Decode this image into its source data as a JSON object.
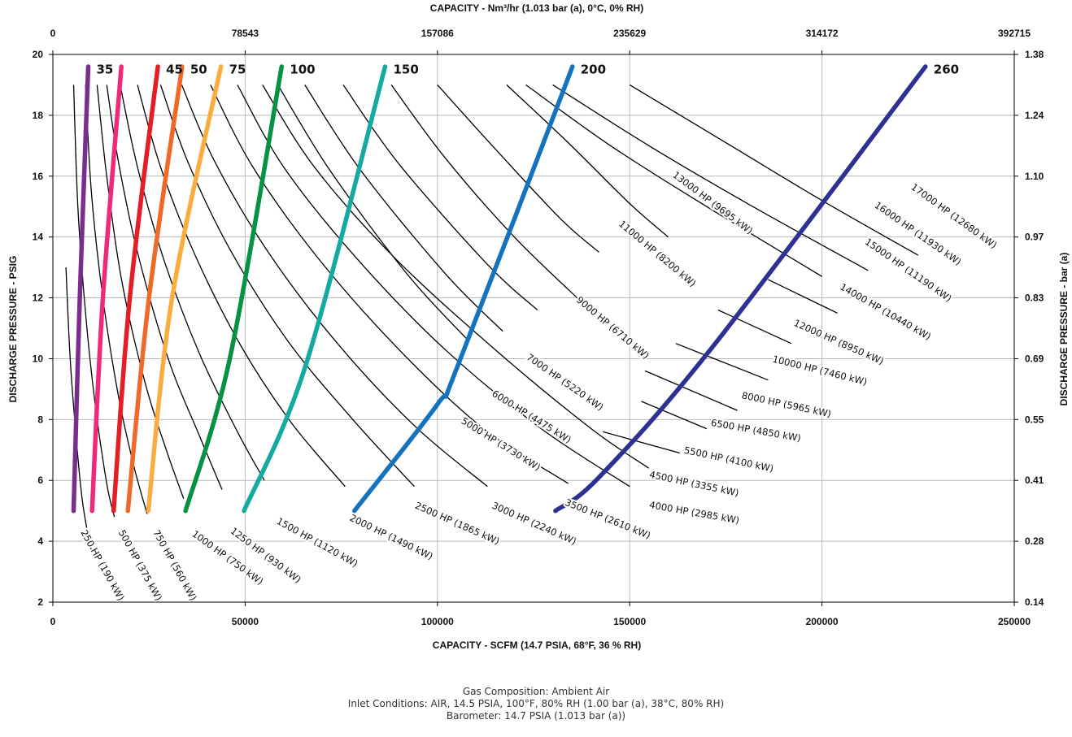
{
  "chart_data": {
    "type": "line",
    "top_axis_title": "CAPACITY - Nm³/hr (1.013 bar (a), 0°C, 0% RH)",
    "bottom_axis_title": "CAPACITY - SCFM (14.7 PSIA, 68°F, 36 % RH)",
    "left_axis_title": "DISCHARGE PRESSURE - PSIG",
    "right_axis_title": "DISCHARGE PRESSURE - bar (a)",
    "xlim": [
      0,
      250000
    ],
    "ylim": [
      2,
      20
    ],
    "grid": true,
    "x_ticks": [
      "0",
      "50000",
      "100000",
      "150000",
      "200000",
      "250000"
    ],
    "x_top_ticks": [
      "0",
      "78543",
      "157086",
      "235629",
      "314172",
      "392715"
    ],
    "y_ticks": [
      "2",
      "4",
      "6",
      "8",
      "10",
      "12",
      "14",
      "16",
      "18",
      "20"
    ],
    "y_right_ticks": [
      "0.14",
      "0.28",
      "0.41",
      "0.55",
      "0.69",
      "0.83",
      "0.97",
      "1.10",
      "1.24",
      "1.38"
    ],
    "size_series": [
      {
        "name": "35",
        "color": "#7b2d8e",
        "x": [
          5400,
          7000,
          9200
        ],
        "y": [
          5,
          12,
          19.6
        ]
      },
      {
        "name": "",
        "color": "#ee2b7b",
        "x": [
          10200,
          13000,
          17800
        ],
        "y": [
          5,
          12,
          19.6
        ]
      },
      {
        "name": "45",
        "color": "#e31e24",
        "x": [
          15800,
          20000,
          27300
        ],
        "y": [
          5,
          12,
          19.6
        ]
      },
      {
        "name": "50",
        "color": "#ef6a2a",
        "x": [
          19500,
          25000,
          33600
        ],
        "y": [
          5,
          12,
          19.6
        ]
      },
      {
        "name": "75",
        "color": "#f8ad3e",
        "x": [
          24800,
          31000,
          43700
        ],
        "y": [
          5,
          12,
          19.6
        ]
      },
      {
        "name": "100",
        "color": "#069143",
        "x": [
          34500,
          46000,
          59500
        ],
        "y": [
          5,
          10,
          19.6
        ]
      },
      {
        "name": "150",
        "color": "#14aaa0",
        "x": [
          49700,
          65800,
          86400
        ],
        "y": [
          5,
          9.8,
          19.6
        ]
      },
      {
        "name": "200",
        "color": "#1473be",
        "x": [
          78400,
          100000,
          105400,
          135100
        ],
        "y": [
          5,
          8.5,
          9.8,
          19.6
        ]
      },
      {
        "name": "260",
        "color": "#2e3192",
        "x": [
          130700,
          142000,
          171000,
          226900
        ],
        "y": [
          5,
          6.1,
          10.3,
          19.6
        ]
      }
    ],
    "size_label_y": 19.5,
    "hp_series": [
      {
        "name": "250 HP (190 kW)",
        "x": [
          3400,
          4500,
          6000,
          7500,
          9000,
          10200
        ],
        "y": [
          13,
          10,
          7.5,
          5.5,
          4.3,
          3.6
        ]
      },
      {
        "name": "500 HP (375 kW)",
        "x": [
          5400,
          6500,
          8500,
          11000,
          14000,
          16000
        ],
        "y": [
          19,
          15,
          11.5,
          8.5,
          5.9,
          4.8
        ]
      },
      {
        "name": "750 HP (560 kW)",
        "x": [
          8500,
          10000,
          13000,
          17000,
          21000,
          24500
        ],
        "y": [
          19,
          15.5,
          12,
          8.8,
          6.5,
          4.9
        ]
      },
      {
        "name": "1000 HP (750 kW)",
        "x": [
          11500,
          14000,
          18000,
          24000,
          29500,
          34000
        ],
        "y": [
          19,
          16,
          12.5,
          9.2,
          7,
          5.4
        ]
      },
      {
        "name": "1250 HP (930 kW)",
        "x": [
          14000,
          17000,
          22000,
          30000,
          38000,
          44000
        ],
        "y": [
          19,
          16.5,
          13.5,
          10,
          7.5,
          5.7
        ]
      },
      {
        "name": "1500 HP (1120 kW)",
        "x": [
          17500,
          22000,
          29000,
          38000,
          48000,
          55000
        ],
        "y": [
          19,
          16.3,
          13.2,
          10.2,
          7.6,
          6
        ]
      },
      {
        "name": "2000 HP (1490 kW)",
        "x": [
          22000,
          28000,
          37000,
          49000,
          62000,
          76000
        ],
        "y": [
          19,
          16.3,
          13.4,
          10.4,
          7.9,
          5.8
        ]
      },
      {
        "name": "2500 HP (1865 kW)",
        "x": [
          28000,
          35000,
          46000,
          61000,
          78000,
          94000
        ],
        "y": [
          19,
          16.5,
          13.6,
          10.6,
          8,
          5.8
        ]
      },
      {
        "name": "3000 HP (2240 kW)",
        "x": [
          33500,
          42000,
          56000,
          74000,
          94000,
          113000
        ],
        "y": [
          19,
          16.5,
          13.5,
          10.5,
          7.8,
          5.8
        ]
      },
      {
        "name": "3500 HP (2610 kW)",
        "x": [
          41000,
          52000,
          69000,
          90000,
          112000,
          134000
        ],
        "y": [
          19,
          16.3,
          13.3,
          10.3,
          7.7,
          5.9
        ]
      },
      {
        "name": "4000 HP (2985 kW)",
        "x": [
          48000,
          60000,
          79000,
          102000,
          127000,
          150000
        ],
        "y": [
          19,
          16.3,
          13.3,
          10.3,
          7.7,
          5.8
        ]
      },
      {
        "name": "4500 HP (3355 kW)",
        "x": [
          54500,
          68000,
          89000,
          115000,
          140000,
          155000
        ],
        "y": [
          19,
          16.3,
          13.3,
          10.3,
          7.7,
          6.4
        ]
      },
      {
        "name": "5000 HP (3730 kW)",
        "x": [
          58500,
          72000,
          92000,
          108000
        ],
        "y": [
          19,
          16.2,
          12.8,
          10.6
        ]
      },
      {
        "name": "5500 HP (4100 kW)",
        "x": [
          143000,
          163000
        ],
        "y": [
          7.6,
          6.9
        ]
      },
      {
        "name": "6000 HP (4475 kW)",
        "x": [
          65500,
          80000,
          102000,
          117000
        ],
        "y": [
          19,
          16.2,
          12.8,
          10.9
        ]
      },
      {
        "name": "6500 HP (4850 kW)",
        "x": [
          153000,
          170000
        ],
        "y": [
          8.6,
          7.7
        ]
      },
      {
        "name": "7000 HP (5220 kW)",
        "x": [
          75500,
          90000,
          113000,
          126000
        ],
        "y": [
          19,
          16.4,
          13.1,
          11.6
        ]
      },
      {
        "name": "8000 HP (5965 kW)",
        "x": [
          154000,
          178000
        ],
        "y": [
          9.6,
          8.3
        ]
      },
      {
        "name": "9000 HP (6710 kW)",
        "x": [
          88000,
          102000,
          120000,
          138000
        ],
        "y": [
          19,
          16.6,
          14,
          11.8
        ]
      },
      {
        "name": "10000 HP (7460 kW)",
        "x": [
          162000,
          186000
        ],
        "y": [
          10.5,
          9.3
        ]
      },
      {
        "name": "11000 HP (8200 kW)",
        "x": [
          100000,
          115000,
          132000,
          142000
        ],
        "y": [
          19,
          16.9,
          14.6,
          13.5
        ]
      },
      {
        "name": "12000 HP (8950 kW)",
        "x": [
          173000,
          192000
        ],
        "y": [
          11.6,
          10.5
        ]
      },
      {
        "name": "13000 HP (9695 kW)",
        "x": [
          118000,
          134000,
          150000,
          160000
        ],
        "y": [
          19,
          17.1,
          15.1,
          14
        ]
      },
      {
        "name": "14000 HP (10440 kW)",
        "x": [
          186000,
          204000
        ],
        "y": [
          12.6,
          11.5
        ]
      },
      {
        "name": "15000 HP (11190 kW)",
        "x": [
          123000,
          145000,
          170000,
          200000
        ],
        "y": [
          19,
          17,
          15,
          12.7
        ]
      },
      {
        "name": "16000 HP (11930 kW)",
        "x": [
          130000,
          155000,
          182000,
          212000
        ],
        "y": [
          19,
          17,
          15,
          12.9
        ]
      },
      {
        "name": "17000 HP (12680 kW)",
        "x": [
          150000,
          175000,
          200000,
          225000
        ],
        "y": [
          19,
          17.1,
          15.2,
          13.4
        ]
      }
    ],
    "hp_labels": [
      {
        "text": "250 HP (190 kW)",
        "x": 7200,
        "y": 4.3,
        "angle": 61
      },
      {
        "text": "500 HP (375 kW)",
        "x": 17000,
        "y": 4.3,
        "angle": 61
      },
      {
        "text": "750 HP (560 kW)",
        "x": 26000,
        "y": 4.3,
        "angle": 61
      },
      {
        "text": "1000 HP (750 kW)",
        "x": 36000,
        "y": 4.2,
        "angle": 36
      },
      {
        "text": "1250 HP (930 kW)",
        "x": 46000,
        "y": 4.3,
        "angle": 37
      },
      {
        "text": "1500 HP (1120 kW)",
        "x": 58000,
        "y": 4.6,
        "angle": 29
      },
      {
        "text": "2000 HP (1490 kW)",
        "x": 77000,
        "y": 4.7,
        "angle": 26
      },
      {
        "text": "2500 HP (1865 kW)",
        "x": 94000,
        "y": 5.1,
        "angle": 24
      },
      {
        "text": "3000 HP (2240 kW)",
        "x": 114000,
        "y": 5.1,
        "angle": 24
      },
      {
        "text": "3500 HP (2610 kW)",
        "x": 133000,
        "y": 5.2,
        "angle": 22
      },
      {
        "text": "4000 HP (2985 kW)",
        "x": 155000,
        "y": 5.1,
        "angle": 10
      },
      {
        "text": "4500 HP (3355 kW)",
        "x": 155000,
        "y": 6.1,
        "angle": 12
      },
      {
        "text": "5500 HP (4100 kW)",
        "x": 164000,
        "y": 6.9,
        "angle": 12
      },
      {
        "text": "6500 HP (4850 kW)",
        "x": 171000,
        "y": 7.8,
        "angle": 10
      },
      {
        "text": "8000 HP (5965 kW)",
        "x": 179000,
        "y": 8.7,
        "angle": 12
      },
      {
        "text": "10000 HP (7460 kW)",
        "x": 187000,
        "y": 9.9,
        "angle": 14
      },
      {
        "text": "12000 HP (8950 kW)",
        "x": 192500,
        "y": 11.1,
        "angle": 24
      },
      {
        "text": "14000 HP (10440 kW)",
        "x": 204500,
        "y": 12.3,
        "angle": 30
      },
      {
        "text": "15000 HP (11190 kW)",
        "x": 211000,
        "y": 13.8,
        "angle": 35
      },
      {
        "text": "16000 HP (11930 kW)",
        "x": 213500,
        "y": 15.0,
        "angle": 35
      },
      {
        "text": "17000 HP (12680 kW)",
        "x": 223000,
        "y": 15.6,
        "angle": 36
      },
      {
        "text": "13000 HP (9695 kW)",
        "x": 161000,
        "y": 16.0,
        "angle": 37
      },
      {
        "text": "11000 HP (8200 kW)",
        "x": 147000,
        "y": 14.4,
        "angle": 40
      },
      {
        "text": "9000 HP (6710 kW)",
        "x": 136000,
        "y": 11.9,
        "angle": 40
      },
      {
        "text": "7000 HP (5220 kW)",
        "x": 123000,
        "y": 10.0,
        "angle": 35
      },
      {
        "text": "6000 HP (4475 kW)",
        "x": 114000,
        "y": 8.8,
        "angle": 32
      },
      {
        "text": "5000 HP (3730 kW)",
        "x": 106000,
        "y": 7.9,
        "angle": 32
      }
    ]
  },
  "notes": {
    "line1": "Gas Composition: Ambient Air",
    "line2": "Inlet Conditions: AIR, 14.5 PSIA, 100°F, 80% RH (1.00 bar (a), 38°C, 80% RH)",
    "line3": "Barometer: 14.7 PSIA (1.013 bar (a))"
  }
}
